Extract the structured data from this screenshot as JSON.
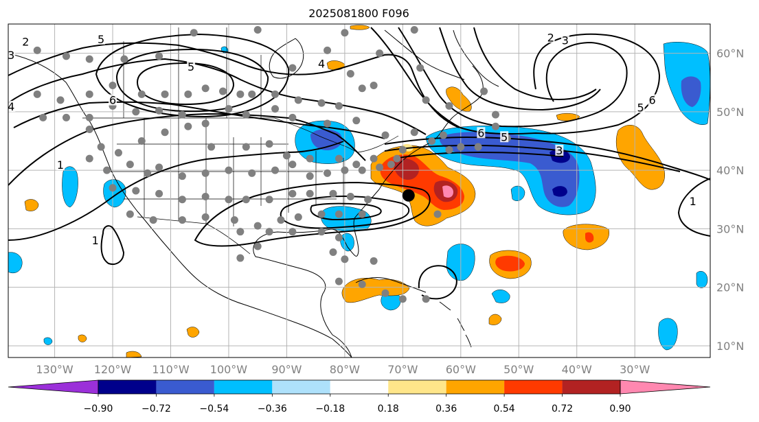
{
  "title": "2025081800 F096",
  "map": {
    "projection": "equirectangular",
    "extent": {
      "lon_min": -138,
      "lon_max": -17,
      "lat_min": 8,
      "lat_max": 65
    },
    "lon_ticks": [
      {
        "v": -130,
        "t": "130°W"
      },
      {
        "v": -120,
        "t": "120°W"
      },
      {
        "v": -110,
        "t": "110°W"
      },
      {
        "v": -100,
        "t": "100°W"
      },
      {
        "v": -90,
        "t": "90°W"
      },
      {
        "v": -80,
        "t": "80°W"
      },
      {
        "v": -70,
        "t": "70°W"
      },
      {
        "v": -60,
        "t": "60°W"
      },
      {
        "v": -50,
        "t": "50°W"
      },
      {
        "v": -40,
        "t": "40°W"
      },
      {
        "v": -30,
        "t": "30°W"
      }
    ],
    "lat_ticks": [
      {
        "v": 10,
        "t": "10°N"
      },
      {
        "v": 20,
        "t": "20°N"
      },
      {
        "v": 30,
        "t": "30°N"
      },
      {
        "v": 40,
        "t": "40°N"
      },
      {
        "v": 50,
        "t": "50°N"
      },
      {
        "v": 60,
        "t": "60°N"
      }
    ],
    "gridlines": true,
    "storm_center": {
      "lon": -69,
      "lat": 35.7
    }
  },
  "colorbar": {
    "orientation": "horizontal",
    "extend": "both",
    "ticks": [
      "−0.90",
      "−0.72",
      "−0.54",
      "−0.36",
      "−0.18",
      "0.18",
      "0.36",
      "0.54",
      "0.72",
      "0.90"
    ],
    "colors": [
      "#9b30d9",
      "#00008b",
      "#3a5bd0",
      "#00bfff",
      "#aee1fb",
      "#ffffff",
      "#ffe68a",
      "#ffa500",
      "#ff3a00",
      "#b22222",
      "#ff88b0"
    ]
  },
  "contour_labels": [
    {
      "t": "2",
      "lon": -135,
      "lat": 61.8
    },
    {
      "t": "3",
      "lon": -137.5,
      "lat": 59.5
    },
    {
      "t": "5",
      "lon": -122,
      "lat": 62.2
    },
    {
      "t": "5",
      "lon": -106.5,
      "lat": 57.5
    },
    {
      "t": "6",
      "lon": -120,
      "lat": 51.8
    },
    {
      "t": "4",
      "lon": -137.5,
      "lat": 50.7
    },
    {
      "t": "1",
      "lon": -129,
      "lat": 40.7
    },
    {
      "t": "1",
      "lon": -123,
      "lat": 27.8
    },
    {
      "t": "4",
      "lon": -84,
      "lat": 58
    },
    {
      "t": "2",
      "lon": -44.5,
      "lat": 62.5
    },
    {
      "t": "3",
      "lon": -42,
      "lat": 62
    },
    {
      "t": "6",
      "lon": -56.5,
      "lat": 46.2
    },
    {
      "t": "5",
      "lon": -52.5,
      "lat": 45.5
    },
    {
      "t": "3",
      "lon": -43,
      "lat": 43.2
    },
    {
      "t": "6",
      "lon": -27,
      "lat": 51.8
    },
    {
      "t": "5",
      "lon": -29,
      "lat": 50.5
    },
    {
      "t": "1",
      "lon": -20,
      "lat": 34.5
    }
  ],
  "stations": [
    [
      -133,
      60.5
    ],
    [
      -128,
      59.5
    ],
    [
      -124,
      59
    ],
    [
      -118,
      59
    ],
    [
      -112,
      59.5
    ],
    [
      -106,
      63.5
    ],
    [
      -95,
      64
    ],
    [
      -89,
      57.5
    ],
    [
      -83,
      60.5
    ],
    [
      -80,
      63.5
    ],
    [
      -74,
      60
    ],
    [
      -68,
      64
    ],
    [
      -67,
      57.5
    ],
    [
      -79,
      56.5
    ],
    [
      -75,
      54.5
    ],
    [
      -66,
      52
    ],
    [
      -62,
      51
    ],
    [
      -56,
      53.5
    ],
    [
      -54,
      49.5
    ],
    [
      -133,
      53
    ],
    [
      -129,
      52
    ],
    [
      -124,
      53
    ],
    [
      -120,
      54.5
    ],
    [
      -115,
      53
    ],
    [
      -111,
      53
    ],
    [
      -107,
      53
    ],
    [
      -104,
      54
    ],
    [
      -101,
      53.5
    ],
    [
      -98,
      53
    ],
    [
      -96,
      53
    ],
    [
      -92,
      53
    ],
    [
      -88,
      52
    ],
    [
      -84,
      51.5
    ],
    [
      -81,
      51
    ],
    [
      -77,
      54
    ],
    [
      -132,
      49
    ],
    [
      -128,
      49
    ],
    [
      -124,
      49
    ],
    [
      -120,
      51
    ],
    [
      -116,
      50
    ],
    [
      -112,
      50.2
    ],
    [
      -108,
      49.5
    ],
    [
      -104,
      48
    ],
    [
      -100,
      50.5
    ],
    [
      -97,
      49.5
    ],
    [
      -92,
      50.5
    ],
    [
      -89,
      49
    ],
    [
      -83,
      48
    ],
    [
      -78,
      48.5
    ],
    [
      -73,
      46
    ],
    [
      -68,
      46.5
    ],
    [
      -63,
      46
    ],
    [
      -60,
      44
    ],
    [
      -57,
      44
    ],
    [
      -54,
      47.5
    ],
    [
      -52,
      45.5
    ],
    [
      -124,
      47
    ],
    [
      -122,
      44
    ],
    [
      -119,
      43
    ],
    [
      -115,
      45
    ],
    [
      -111,
      46.5
    ],
    [
      -107,
      47.5
    ],
    [
      -103,
      44
    ],
    [
      -97,
      44
    ],
    [
      -93,
      44.5
    ],
    [
      -90,
      42.5
    ],
    [
      -86,
      42
    ],
    [
      -81,
      42
    ],
    [
      -78,
      41
    ],
    [
      -75,
      42
    ],
    [
      -71,
      42
    ],
    [
      -70,
      43.5
    ],
    [
      -65,
      45
    ],
    [
      -62,
      43.5
    ],
    [
      -124,
      42
    ],
    [
      -121,
      40
    ],
    [
      -117,
      41
    ],
    [
      -114,
      39.5
    ],
    [
      -112,
      40.5
    ],
    [
      -108,
      39
    ],
    [
      -104,
      39.5
    ],
    [
      -100,
      40
    ],
    [
      -96,
      39.5
    ],
    [
      -92,
      40
    ],
    [
      -89,
      41
    ],
    [
      -86,
      39
    ],
    [
      -83,
      39.5
    ],
    [
      -80,
      40
    ],
    [
      -77,
      40
    ],
    [
      -74,
      40.5
    ],
    [
      -72,
      41
    ],
    [
      -120,
      37
    ],
    [
      -116,
      36.5
    ],
    [
      -112,
      36
    ],
    [
      -108,
      35
    ],
    [
      -104,
      35.5
    ],
    [
      -100,
      35
    ],
    [
      -97,
      35
    ],
    [
      -93,
      35
    ],
    [
      -89,
      36
    ],
    [
      -86,
      36
    ],
    [
      -82,
      36
    ],
    [
      -79,
      35.5
    ],
    [
      -76,
      35
    ],
    [
      -117,
      32.5
    ],
    [
      -113,
      31.5
    ],
    [
      -108,
      31.5
    ],
    [
      -104,
      32
    ],
    [
      -99,
      31.5
    ],
    [
      -95,
      30.5
    ],
    [
      -91,
      31.5
    ],
    [
      -88,
      32
    ],
    [
      -84,
      32.5
    ],
    [
      -81,
      32.5
    ],
    [
      -77,
      32.5
    ],
    [
      -98,
      29.5
    ],
    [
      -93,
      29.5
    ],
    [
      -89,
      29.5
    ],
    [
      -84,
      29.5
    ],
    [
      -81,
      28.5
    ],
    [
      -95,
      27
    ],
    [
      -98,
      25
    ],
    [
      -82,
      26
    ],
    [
      -80,
      24.8
    ],
    [
      -75,
      24.5
    ],
    [
      -81,
      21
    ],
    [
      -77,
      20.5
    ],
    [
      -73,
      19
    ],
    [
      -70,
      18
    ],
    [
      -66,
      18
    ],
    [
      -64,
      32.5
    ]
  ]
}
